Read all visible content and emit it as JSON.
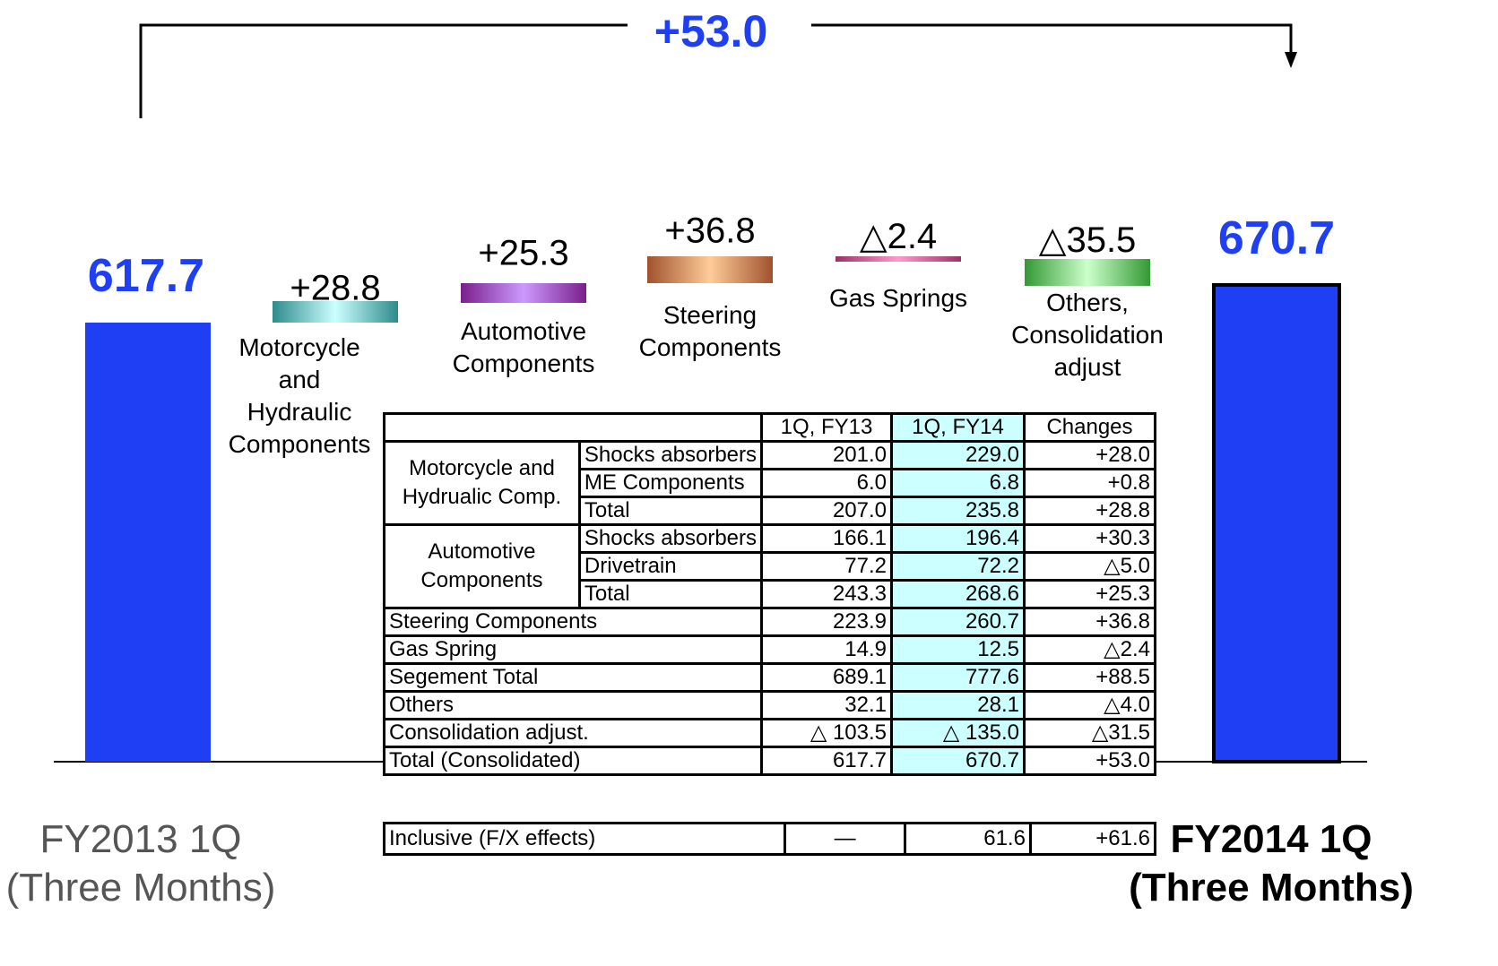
{
  "chart_data": {
    "type": "waterfall",
    "categories": [
      "FY2013 1Q",
      "FY2014 1Q"
    ],
    "subtitles": [
      "(Three Months)",
      "(Three Months)"
    ],
    "values": [
      617.7,
      670.7
    ],
    "color": "#1f3ff5",
    "total_change": {
      "value": 53.0,
      "value_label": "+53.0"
    },
    "changes": {
      "names": [
        "Motorcycle and Hydraulic Components",
        "Automotive Components",
        "Steering Components",
        "Gas Springs",
        "Others, Consolidation adjust"
      ],
      "values": [
        28.8,
        25.3,
        36.8,
        -2.4,
        -35.5
      ],
      "value_labels": [
        "+28.8",
        "+25.3",
        "+36.8",
        "△2.4",
        "△35.5"
      ],
      "colors": [
        [
          "#2e8b8b",
          "#ccffff"
        ],
        [
          "#7a1f8a",
          "#cc99ff"
        ],
        [
          "#a0522d",
          "#ffcc99"
        ],
        [
          "#993366",
          "#ff99cc"
        ],
        [
          "#339933",
          "#ccffcc"
        ]
      ]
    }
  },
  "table": {
    "columns": [
      "1Q, FY13",
      "1Q, FY14",
      "Changes"
    ],
    "groups": [
      {
        "label": "Motorcycle and Hydrualic Comp.",
        "rows": [
          [
            "Shocks absorbers",
            "201.0",
            "229.0",
            "+28.0"
          ],
          [
            "ME Components",
            "6.0",
            "6.8",
            "+0.8"
          ],
          [
            "Total",
            "207.0",
            "235.8",
            "+28.8"
          ]
        ]
      },
      {
        "label": "Automotive Components",
        "rows": [
          [
            "Shocks absorbers",
            "166.1",
            "196.4",
            "+30.3"
          ],
          [
            "Drivetrain",
            "77.2",
            "72.2",
            "△5.0"
          ],
          [
            "Total",
            "243.3",
            "268.6",
            "+25.3"
          ]
        ]
      }
    ],
    "rows": [
      [
        "Steering Components",
        "223.9",
        "260.7",
        "+36.8"
      ],
      [
        "Gas Spring",
        "14.9",
        "12.5",
        "△2.4"
      ],
      [
        "Segement Total",
        "689.1",
        "777.6",
        "+88.5"
      ],
      [
        "Others",
        "32.1",
        "28.1",
        "△4.0"
      ],
      [
        "Consolidation adjust.",
        "△ 103.5",
        "△ 135.0",
        "△31.5"
      ],
      [
        "Total (Consolidated)",
        "617.7",
        "670.7",
        "+53.0"
      ]
    ],
    "extra": [
      "Inclusive (F/X effects)",
      "—",
      "61.6",
      "+61.6"
    ]
  }
}
